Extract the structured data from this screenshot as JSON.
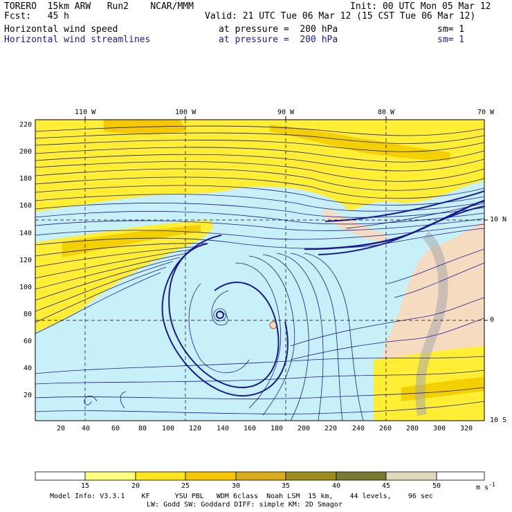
{
  "header": {
    "model": "TORERO  15km ARW   Run2    NCAR/MMM",
    "init": "Init: 00 UTC Mon 05 Mar 12",
    "fcst": "Fcst:   45 h",
    "valid": "Valid: 21 UTC Tue 06 Mar 12 (15 CST Tue 06 Mar 12)",
    "field1_name": "Horizontal wind speed",
    "field1_level": "at pressure =  200 hPa",
    "field1_sm": "sm= 1",
    "field2_name": "Horizontal wind streamlines",
    "field2_level": "at pressure =  200 hPa",
    "field2_sm": "sm= 1"
  },
  "map": {
    "lon_labels": [
      "110 W",
      "100 W",
      "90 W",
      "80 W",
      "70 W"
    ],
    "lat_labels": [
      "10 N",
      "0",
      "10 S"
    ],
    "x_ticks": [
      "20",
      "40",
      "60",
      "80",
      "100",
      "120",
      "140",
      "160",
      "180",
      "200",
      "220",
      "240",
      "260",
      "280",
      "300",
      "320"
    ],
    "y_ticks": [
      "220",
      "200",
      "180",
      "160",
      "140",
      "120",
      "100",
      "80",
      "60",
      "40",
      "20"
    ]
  },
  "colorbar": {
    "labels": [
      "15",
      "20",
      "25",
      "30",
      "35",
      "40",
      "45",
      "50"
    ],
    "unit": "m s",
    "unit_exp": "-1",
    "colors": [
      "#ffffff",
      "#ffff80",
      "#ffe61a",
      "#f5c800",
      "#d9ad1a",
      "#9e8c1a",
      "#7a7a33",
      "#b5a64d",
      "#dedabd",
      "#ffffff"
    ]
  },
  "footer": {
    "line1": "Model Info: V3.3.1    KF      YSU PBL   WDM 6class  Noah LSM  15 km,    44 levels,    96 sec",
    "line2": "LW: Godd SW: Goddard DIFF: simple KM: 2D Smagor"
  }
}
